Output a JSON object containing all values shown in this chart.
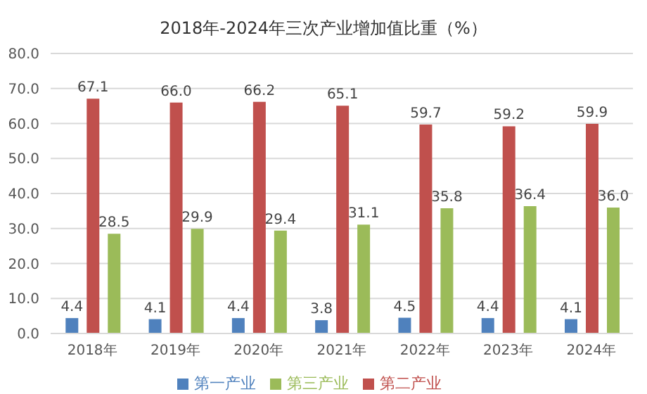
{
  "chart_data": {
    "type": "bar",
    "title": "2018年-2024年三次产业增加值比重（%）",
    "categories": [
      "2018年",
      "2019年",
      "2020年",
      "2021年",
      "2022年",
      "2023年",
      "2024年"
    ],
    "series": [
      {
        "name": "第一产业",
        "color": "#4f81bd",
        "values": [
          4.4,
          4.1,
          4.4,
          3.8,
          4.5,
          4.4,
          4.1
        ],
        "value_labels": [
          "4.4",
          "4.1",
          "4.4",
          "3.8",
          "4.5",
          "4.4",
          "4.1"
        ]
      },
      {
        "name": "第二产业",
        "color": "#c0504d",
        "values": [
          67.1,
          66.0,
          66.2,
          65.1,
          59.7,
          59.2,
          59.9
        ],
        "value_labels": [
          "67.1",
          "66.0",
          "66.2",
          "65.1",
          "59.7",
          "59.2",
          "59.9"
        ]
      },
      {
        "name": "第三产业",
        "color": "#9bbb59",
        "values": [
          28.5,
          29.9,
          29.4,
          31.1,
          35.8,
          36.4,
          36.0
        ],
        "value_labels": [
          "28.5",
          "29.9",
          "29.4",
          "31.1",
          "35.8",
          "36.4",
          "36.0"
        ]
      }
    ],
    "ylim": [
      0,
      80
    ],
    "yticks": [
      {
        "value": 0,
        "label": "0.0"
      },
      {
        "value": 10,
        "label": "10.0"
      },
      {
        "value": 20,
        "label": "20.0"
      },
      {
        "value": 30,
        "label": "30.0"
      },
      {
        "value": 40,
        "label": "40.0"
      },
      {
        "value": 50,
        "label": "50.0"
      },
      {
        "value": 60,
        "label": "60.0"
      },
      {
        "value": 70,
        "label": "70.0"
      },
      {
        "value": 80,
        "label": "80.0"
      }
    ],
    "grid": "y",
    "legend": "bottom"
  }
}
